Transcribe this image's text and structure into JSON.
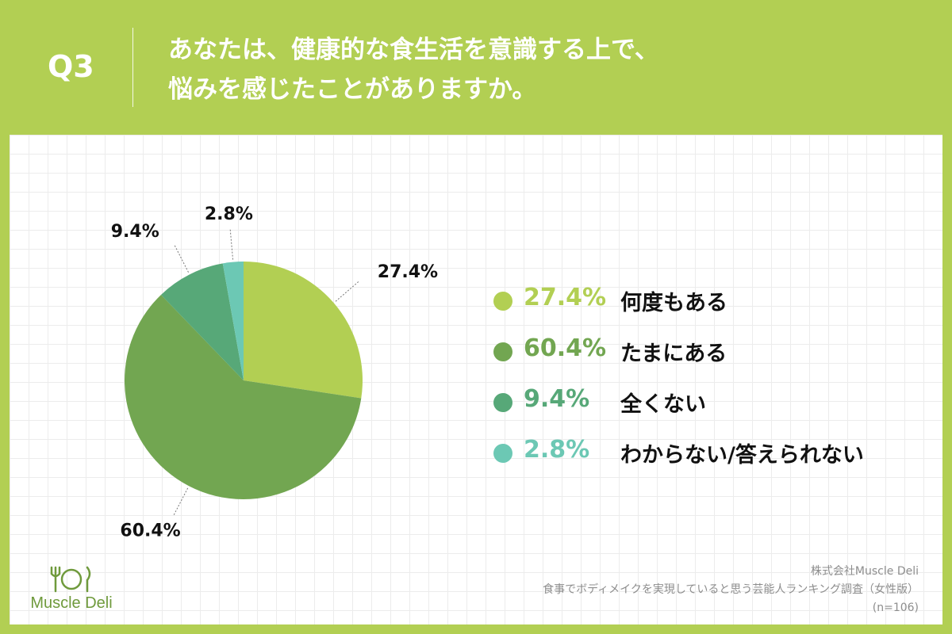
{
  "header": {
    "q_label": "Q3",
    "title_line1": "あなたは、健康的な食生活を意識する上で、",
    "title_line2": "悩みを感じたことがありますか。"
  },
  "chart_data": {
    "type": "pie",
    "slices": [
      {
        "label": "何度もある",
        "value": 27.4,
        "value_label": "27.4%",
        "color": "#b2cf53"
      },
      {
        "label": "たまにある",
        "value": 60.4,
        "value_label": "60.4%",
        "color": "#72a651"
      },
      {
        "label": "全くない",
        "value": 9.4,
        "value_label": "9.4%",
        "color": "#57a878"
      },
      {
        "label": "わからない/答えられない",
        "value": 2.8,
        "value_label": "2.8%",
        "color": "#6cc8b4"
      }
    ]
  },
  "logo": {
    "text": "Muscle Deli"
  },
  "footer": {
    "company": "株式会社Muscle Deli",
    "survey": "食事でボディメイクを実現していると思う芸能人ランキング調査（女性版）",
    "sample": "(n=106)"
  }
}
